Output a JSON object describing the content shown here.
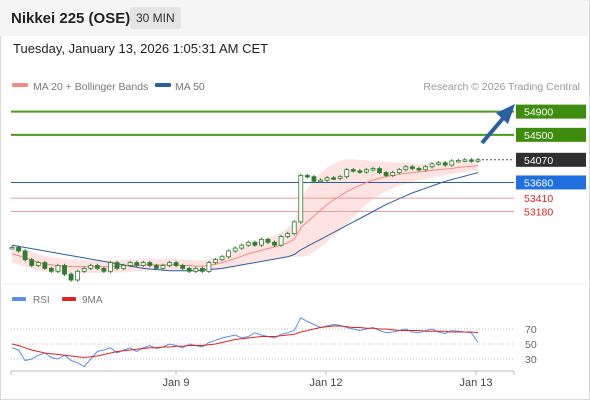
{
  "header": {
    "title": "Nikkei 225 (OSE)",
    "interval": "30 MIN",
    "datetime": "Tuesday, January 13, 2026 1:05:31 AM CET"
  },
  "legend": {
    "ma20": "MA 20 + Bollinger Bands",
    "ma50": "MA 50",
    "credit": "Research © 2026 Trading Central",
    "ma20_color": "#f28b82",
    "ma50_color": "#2b5fa3"
  },
  "chart_data": [
    {
      "type": "line",
      "name": "price",
      "x_ticks": [
        "Jan 9",
        "Jan 12",
        "Jan 13"
      ],
      "ylim": [
        52000,
        55100
      ],
      "prices": [
        52560,
        52500,
        52350,
        52250,
        52300,
        52200,
        52150,
        52250,
        52100,
        52000,
        52150,
        52200,
        52250,
        52200,
        52150,
        52300,
        52200,
        52250,
        52300,
        52250,
        52300,
        52250,
        52200,
        52250,
        52300,
        52250,
        52200,
        52150,
        52200,
        52150,
        52300,
        52350,
        52400,
        52500,
        52550,
        52600,
        52650,
        52600,
        52700,
        52650,
        52600,
        52750,
        52800,
        53000,
        53800,
        53780,
        53700,
        53720,
        53760,
        53750,
        53780,
        53900,
        53880,
        53860,
        53900,
        53920,
        53850,
        53800,
        53850,
        53900,
        53950,
        53920,
        53900,
        53950,
        54000,
        54020,
        53980,
        54050,
        54060,
        54070,
        54050,
        54070
      ],
      "ma20": [
        52450,
        52420,
        52380,
        52350,
        52300,
        52280,
        52260,
        52250,
        52240,
        52230,
        52230,
        52230,
        52230,
        52230,
        52230,
        52230,
        52240,
        52240,
        52250,
        52250,
        52260,
        52260,
        52260,
        52260,
        52260,
        52260,
        52250,
        52250,
        52240,
        52240,
        52250,
        52270,
        52300,
        52330,
        52370,
        52410,
        52450,
        52480,
        52510,
        52540,
        52570,
        52600,
        52640,
        52700,
        52900,
        53000,
        53100,
        53200,
        53300,
        53380,
        53450,
        53520,
        53580,
        53630,
        53680,
        53720,
        53750,
        53780,
        53800,
        53820,
        53840,
        53850,
        53860,
        53870,
        53890,
        53900,
        53910,
        53920,
        53940,
        53950,
        53960,
        53970
      ],
      "bb_width": [
        150,
        150,
        150,
        150,
        140,
        140,
        130,
        130,
        120,
        120,
        120,
        110,
        110,
        110,
        110,
        110,
        110,
        110,
        110,
        100,
        100,
        100,
        100,
        100,
        100,
        100,
        100,
        100,
        100,
        100,
        110,
        110,
        120,
        130,
        140,
        150,
        160,
        170,
        180,
        190,
        200,
        220,
        250,
        300,
        500,
        580,
        620,
        640,
        640,
        620,
        600,
        560,
        500,
        440,
        380,
        320,
        280,
        250,
        220,
        200,
        180,
        160,
        140,
        130,
        120,
        110,
        100,
        100,
        90,
        90,
        90,
        90
      ],
      "ma50": [
        52600,
        52580,
        52560,
        52540,
        52520,
        52500,
        52480,
        52460,
        52440,
        52420,
        52400,
        52380,
        52360,
        52340,
        52320,
        52300,
        52280,
        52260,
        52240,
        52220,
        52200,
        52190,
        52180,
        52170,
        52160,
        52160,
        52160,
        52160,
        52160,
        52170,
        52180,
        52190,
        52200,
        52220,
        52240,
        52260,
        52280,
        52300,
        52320,
        52340,
        52360,
        52380,
        52400,
        52440,
        52520,
        52580,
        52640,
        52700,
        52760,
        52820,
        52880,
        52940,
        53000,
        53060,
        53120,
        53180,
        53240,
        53300,
        53350,
        53400,
        53450,
        53500,
        53540,
        53580,
        53620,
        53660,
        53700,
        53730,
        53760,
        53790,
        53820,
        53850
      ],
      "levels": [
        {
          "label": "54900",
          "value": 54900,
          "style": "resistance"
        },
        {
          "label": "54500",
          "value": 54500,
          "style": "resistance"
        },
        {
          "label": "54070",
          "value": 54070,
          "style": "last"
        },
        {
          "label": "53680",
          "value": 53680,
          "style": "pivot"
        },
        {
          "label": "53410",
          "value": 53410,
          "style": "support"
        },
        {
          "label": "53180",
          "value": 53180,
          "style": "support"
        }
      ]
    },
    {
      "type": "line",
      "name": "RSI panel",
      "legend": [
        "RSI",
        "9MA"
      ],
      "yticks": [
        "70",
        "50",
        "30"
      ],
      "ylim": [
        0,
        100
      ],
      "rsi": [
        45,
        42,
        28,
        30,
        35,
        38,
        32,
        30,
        35,
        28,
        25,
        20,
        30,
        40,
        42,
        45,
        38,
        42,
        45,
        40,
        45,
        48,
        44,
        46,
        50,
        48,
        45,
        50,
        48,
        46,
        52,
        55,
        58,
        60,
        62,
        58,
        60,
        65,
        62,
        60,
        58,
        63,
        65,
        68,
        85,
        80,
        76,
        72,
        74,
        76,
        75,
        72,
        70,
        68,
        70,
        72,
        68,
        65,
        66,
        68,
        70,
        66,
        65,
        68,
        70,
        66,
        64,
        68,
        67,
        66,
        65,
        52
      ],
      "ma9": [
        50,
        48,
        45,
        42,
        40,
        38,
        37,
        36,
        35,
        34,
        33,
        32,
        33,
        34,
        36,
        38,
        40,
        41,
        42,
        43,
        44,
        45,
        45,
        46,
        46,
        47,
        47,
        48,
        48,
        48,
        49,
        50,
        52,
        54,
        56,
        57,
        58,
        59,
        60,
        60,
        60,
        61,
        62,
        63,
        66,
        68,
        70,
        72,
        73,
        74,
        74,
        73,
        72,
        72,
        71,
        71,
        70,
        70,
        69,
        68,
        68,
        68,
        68,
        67,
        67,
        67,
        67,
        66,
        66,
        66,
        66,
        65
      ]
    }
  ]
}
